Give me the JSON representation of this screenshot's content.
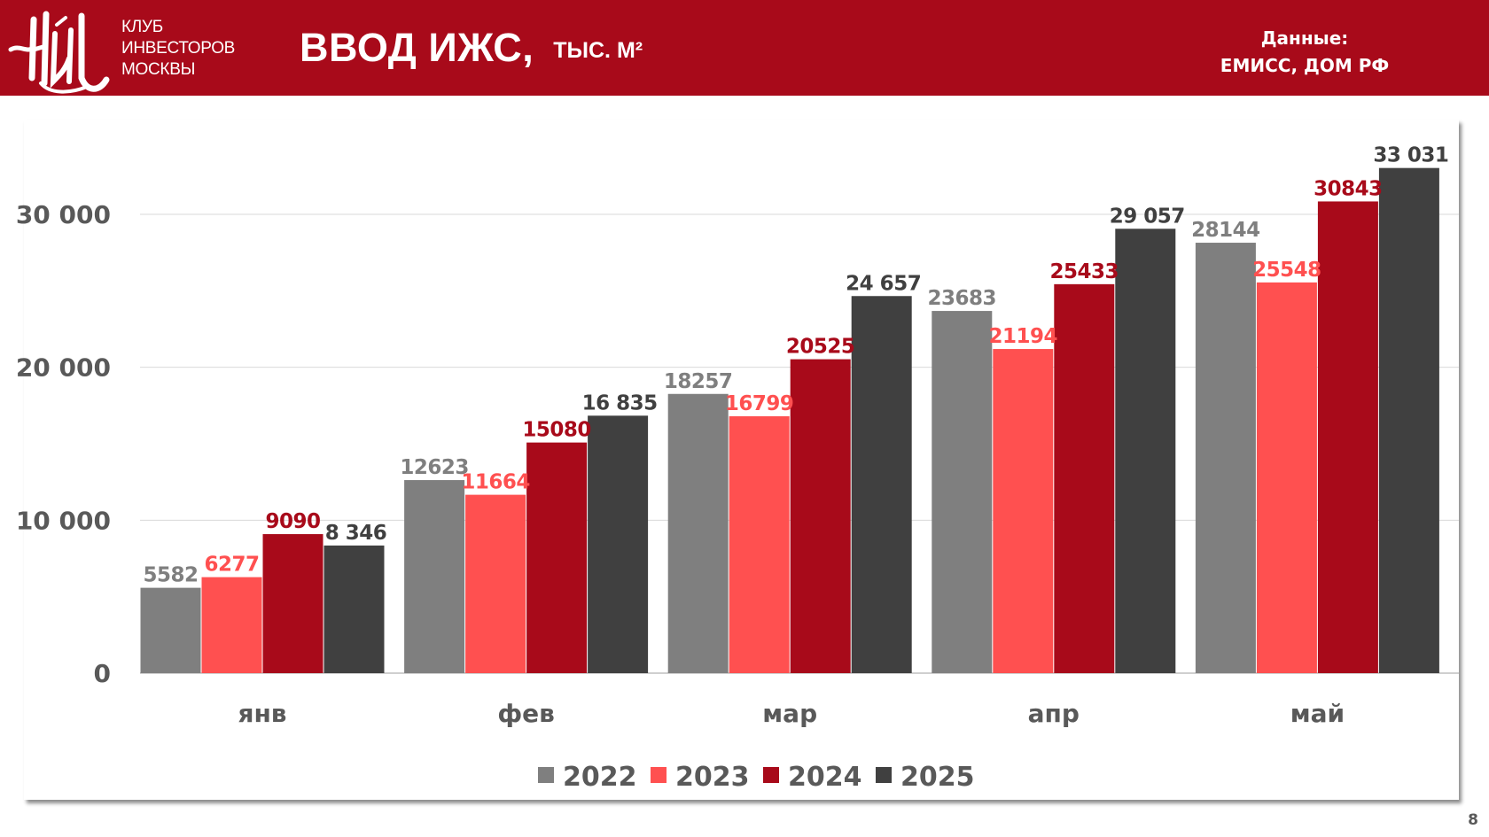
{
  "header": {
    "logo_name": "КИМ",
    "logo_lines": [
      "КЛУБ",
      "ИНВЕСТОРОВ",
      "МОСКВЫ"
    ],
    "title": "ВВОД ИЖС,",
    "unit": "тыс. м²",
    "source_label": "Данные:",
    "source_value": "ЕМИСС, ДОМ РФ"
  },
  "page_number": "8",
  "colors": {
    "header_bg": "#a80a1a",
    "series_2022": "#7f7f7f",
    "series_2023": "#ff5050",
    "series_2024": "#a80a1a",
    "series_2025": "#404040",
    "axis_text": "#595959"
  },
  "chart_data": {
    "type": "bar",
    "title": "ВВОД ИЖС, тыс. м²",
    "xlabel": "",
    "ylabel": "",
    "categories": [
      "янв",
      "фев",
      "мар",
      "апр",
      "май"
    ],
    "series": [
      {
        "name": "2022",
        "color": "#7f7f7f",
        "label_color": "#7f7f7f",
        "values": [
          5582,
          12623,
          18257,
          23683,
          28144
        ],
        "labels": [
          "5582",
          "12623",
          "18257",
          "23683",
          "28144"
        ]
      },
      {
        "name": "2023",
        "color": "#ff5050",
        "label_color": "#ff5050",
        "values": [
          6277,
          11664,
          16799,
          21194,
          25548
        ],
        "labels": [
          "6277",
          "11664",
          "16799",
          "21194",
          "25548"
        ]
      },
      {
        "name": "2024",
        "color": "#a80a1a",
        "label_color": "#a80a1a",
        "values": [
          9090,
          15080,
          20525,
          25433,
          30843
        ],
        "labels": [
          "9090",
          "15080",
          "20525",
          "25433",
          "30843"
        ]
      },
      {
        "name": "2025",
        "color": "#404040",
        "label_color": "#404040",
        "values": [
          8346,
          16835,
          24657,
          29057,
          33031
        ],
        "labels": [
          "8 346",
          "16 835",
          "24 657",
          "29 057",
          "33 031"
        ]
      }
    ],
    "y_ticks": [
      0,
      10000,
      20000,
      30000
    ],
    "y_tick_labels": [
      "0",
      "10 000",
      "20 000",
      "30 000"
    ],
    "ylim": [
      0,
      36000
    ],
    "grid": true,
    "legend": {
      "position": "bottom",
      "entries": [
        "2022",
        "2023",
        "2024",
        "2025"
      ]
    }
  }
}
